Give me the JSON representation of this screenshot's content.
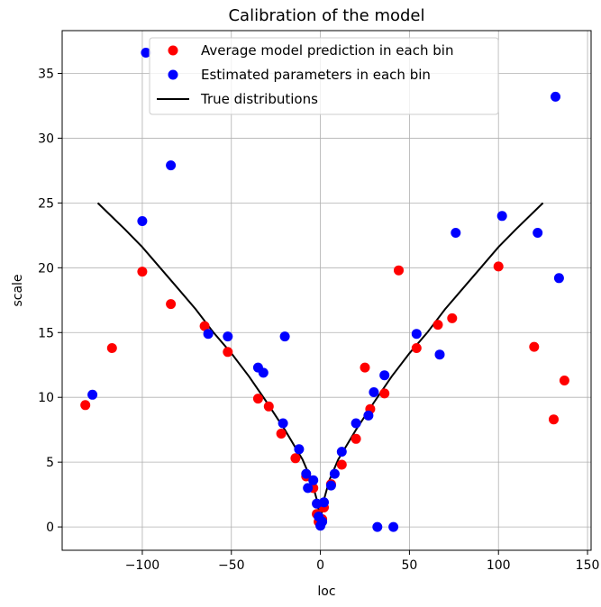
{
  "chart_data": {
    "type": "scatter",
    "title": "Calibration of the model",
    "xlabel": "loc",
    "ylabel": "scale",
    "xlim": [
      -145,
      152
    ],
    "ylim": [
      -1.8,
      38.3
    ],
    "xticks": [
      -100,
      -50,
      0,
      50,
      100,
      150
    ],
    "xtick_labels": [
      "−100",
      "−50",
      "0",
      "50",
      "100",
      "150"
    ],
    "yticks": [
      0,
      5,
      10,
      15,
      20,
      25,
      30,
      35
    ],
    "ytick_labels": [
      "0",
      "5",
      "10",
      "15",
      "20",
      "25",
      "30",
      "35"
    ],
    "grid": true,
    "legend_position": "top-center",
    "series": [
      {
        "name": "Average model prediction in each bin",
        "kind": "scatter",
        "color": "#ff0000",
        "points": [
          [
            -132,
            9.4
          ],
          [
            -117,
            13.8
          ],
          [
            -100,
            19.7
          ],
          [
            -84,
            17.2
          ],
          [
            -65,
            15.5
          ],
          [
            -52,
            13.5
          ],
          [
            -35,
            9.9
          ],
          [
            -29,
            9.3
          ],
          [
            -22,
            7.2
          ],
          [
            -14,
            5.3
          ],
          [
            -8,
            3.9
          ],
          [
            -4,
            3.0
          ],
          [
            -2,
            1.0
          ],
          [
            -1,
            0.4
          ],
          [
            0,
            0.2
          ],
          [
            1,
            0.6
          ],
          [
            2,
            1.5
          ],
          [
            6,
            3.3
          ],
          [
            12,
            4.8
          ],
          [
            20,
            6.8
          ],
          [
            25,
            12.3
          ],
          [
            28,
            9.1
          ],
          [
            36,
            10.3
          ],
          [
            44,
            19.8
          ],
          [
            54,
            13.8
          ],
          [
            66,
            15.6
          ],
          [
            74,
            16.1
          ],
          [
            100,
            20.1
          ],
          [
            120,
            13.9
          ],
          [
            131,
            8.3
          ],
          [
            137,
            11.3
          ]
        ]
      },
      {
        "name": "Estimated parameters in each bin",
        "kind": "scatter",
        "color": "#0000ff",
        "points": [
          [
            -128,
            10.2
          ],
          [
            -100,
            23.6
          ],
          [
            -98,
            36.6
          ],
          [
            -84,
            27.9
          ],
          [
            -63,
            14.9
          ],
          [
            -52,
            14.7
          ],
          [
            -35,
            12.3
          ],
          [
            -32,
            11.9
          ],
          [
            -21,
            8.0
          ],
          [
            -20,
            14.7
          ],
          [
            -12,
            6.0
          ],
          [
            -8,
            4.1
          ],
          [
            -7,
            3.0
          ],
          [
            -4,
            3.6
          ],
          [
            -2,
            1.8
          ],
          [
            -1,
            0.8
          ],
          [
            0,
            0.1
          ],
          [
            1,
            0.4
          ],
          [
            2,
            1.9
          ],
          [
            6,
            3.2
          ],
          [
            8,
            4.1
          ],
          [
            12,
            5.8
          ],
          [
            20,
            8.0
          ],
          [
            27,
            8.6
          ],
          [
            30,
            10.4
          ],
          [
            32,
            0.0
          ],
          [
            36,
            11.7
          ],
          [
            41,
            0.0
          ],
          [
            54,
            14.9
          ],
          [
            67,
            13.3
          ],
          [
            76,
            22.7
          ],
          [
            102,
            24.0
          ],
          [
            122,
            22.7
          ],
          [
            132,
            33.2
          ],
          [
            134,
            19.2
          ]
        ]
      },
      {
        "name": "True distributions",
        "kind": "line",
        "color": "#000000",
        "points": [
          [
            -125,
            25.0
          ],
          [
            -110,
            23.0
          ],
          [
            -100,
            21.6
          ],
          [
            -90,
            20.0
          ],
          [
            -80,
            18.4
          ],
          [
            -70,
            16.8
          ],
          [
            -60,
            15.0
          ],
          [
            -50,
            13.4
          ],
          [
            -40,
            11.6
          ],
          [
            -30,
            9.6
          ],
          [
            -20,
            7.5
          ],
          [
            -10,
            5.2
          ],
          [
            -5,
            3.6
          ],
          [
            -2,
            2.1
          ],
          [
            0,
            0.5
          ],
          [
            2,
            2.1
          ],
          [
            5,
            3.6
          ],
          [
            10,
            5.2
          ],
          [
            20,
            7.5
          ],
          [
            30,
            9.6
          ],
          [
            40,
            11.6
          ],
          [
            50,
            13.4
          ],
          [
            60,
            15.0
          ],
          [
            70,
            16.8
          ],
          [
            80,
            18.4
          ],
          [
            90,
            20.0
          ],
          [
            100,
            21.6
          ],
          [
            110,
            23.0
          ],
          [
            125,
            25.0
          ]
        ]
      }
    ]
  }
}
